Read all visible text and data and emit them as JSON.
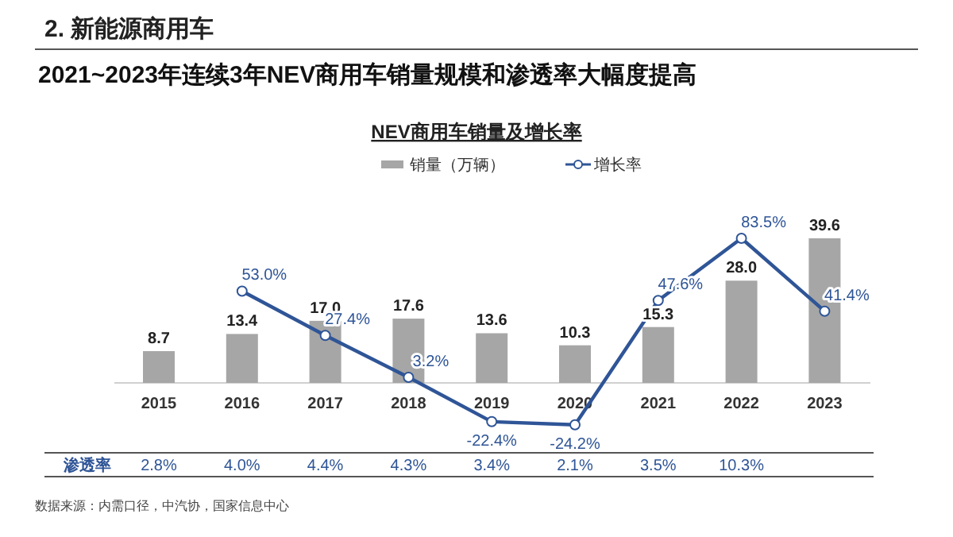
{
  "chart_data": {
    "type": "bar",
    "title": "NEV商用车销量及增长率",
    "categories": [
      "2015",
      "2016",
      "2017",
      "2018",
      "2019",
      "2020",
      "2021",
      "2022",
      "2023"
    ],
    "series": [
      {
        "name": "销量（万辆）",
        "color": "#a6a6a6",
        "values": [
          8.7,
          13.4,
          17.0,
          17.6,
          13.6,
          10.3,
          15.3,
          28.0,
          39.6
        ],
        "value_labels": [
          "8.7",
          "13.4",
          "17.0",
          "17.6",
          "13.6",
          "10.3",
          "15.3",
          "28.0",
          "39.6"
        ]
      },
      {
        "name": "增长率",
        "type": "line",
        "axis": "y2",
        "color": "#2f5597",
        "marker": "circle",
        "values": [
          null,
          53.0,
          27.4,
          3.2,
          -22.4,
          -24.2,
          47.6,
          83.5,
          41.4
        ],
        "value_labels": [
          null,
          "53.0%",
          "27.4%",
          "3.2%",
          "-22.4%",
          "-24.2%",
          "47.6%",
          "83.5%",
          "41.4%"
        ]
      }
    ],
    "legend": "top",
    "annotations": [
      "2. 新能源商用车",
      "2021~2023年连续3年NEV商用车销量规模和渗透率大幅度提高",
      "渗透率",
      "2.8%",
      "4.0%",
      "4.4%",
      "4.3%",
      "3.4%",
      "2.1%",
      "3.5%",
      "10.3%",
      "数据来源：内需口径，中汽协，国家信息中心"
    ]
  }
}
